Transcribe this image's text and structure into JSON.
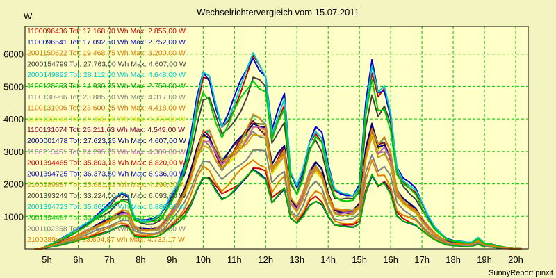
{
  "chart_data": {
    "type": "line",
    "title": "Wechselrichtervergleich vom 15.07.2011",
    "ylabel": "W",
    "footer": "SunnyReport pinxit",
    "x_ticks": [
      "5h",
      "6h",
      "7h",
      "8h",
      "9h",
      "10h",
      "11h",
      "12h",
      "13h",
      "14h",
      "15h",
      "16h",
      "17h",
      "18h",
      "19h",
      "20h"
    ],
    "x_tick_values": [
      5,
      6,
      7,
      8,
      9,
      10,
      11,
      12,
      13,
      14,
      15,
      16,
      17,
      18,
      19,
      20
    ],
    "y_ticks": [
      1000,
      2000,
      3000,
      4000,
      5000,
      6000
    ],
    "xlim": [
      4.3,
      20.4
    ],
    "ylim": [
      0,
      6850
    ],
    "grid": true,
    "legend_position": "top-left",
    "x": [
      4.6,
      4.8,
      5.0,
      5.2,
      5.4,
      5.6,
      5.8,
      6.0,
      6.2,
      6.4,
      6.6,
      6.8,
      7.0,
      7.2,
      7.4,
      7.6,
      7.8,
      8.0,
      8.2,
      8.4,
      8.6,
      8.8,
      9.0,
      9.2,
      9.4,
      9.6,
      9.8,
      10.0,
      10.2,
      10.4,
      10.6,
      10.8,
      11.0,
      11.2,
      11.4,
      11.6,
      11.8,
      12.0,
      12.2,
      12.4,
      12.6,
      12.8,
      13.0,
      13.2,
      13.4,
      13.6,
      13.8,
      14.0,
      14.2,
      14.4,
      14.6,
      14.8,
      15.0,
      15.2,
      15.4,
      15.6,
      15.8,
      16.0,
      16.2,
      16.4,
      16.6,
      16.8,
      17.0,
      17.2,
      17.4,
      17.6,
      17.8,
      18.0,
      18.2,
      18.4,
      18.6,
      18.8,
      19.0,
      19.2,
      19.4,
      19.6,
      19.8,
      20.0,
      20.2
    ],
    "series": [
      {
        "name": "1100096436 Tot: 17.168,00 Wh Max: 2.855,00 W",
        "color": "#cc0000",
        "scale": 0.42,
        "unscaled": true
      },
      {
        "name": "1100096541 Tot: 17.092,50 Wh Max: 2.752,00 W",
        "color": "#0000cc",
        "scale": 0.4,
        "unscaled": true
      },
      {
        "name": "2001150622 Tot: 19.468,75 Wh Max: 3.200,00 W",
        "color": "#e08000",
        "scale": 0.47,
        "unscaled": true
      },
      {
        "name": "2000154799 Tot: 27.763,00 Wh Max: 4.607,00 W",
        "color": "#404040",
        "scale": 0.68
      },
      {
        "name": "2000149892 Tot: 28.112,00 Wh Max: 4.648,00 W",
        "color": "#00cccc",
        "scale": 0.68
      },
      {
        "name": "1100128553 Tot: 14.930,25 Wh Max: 2.759,00 W",
        "color": "#00b000",
        "scale": 0.4,
        "unscaled": true
      },
      {
        "name": "1100130966 Tot: 23.885,50 Wh Max: 4.317,00 W",
        "color": "#808080",
        "scale": 0.63
      },
      {
        "name": "1100131006 Tot: 23.600,25 Wh Max: 4.418,00 W",
        "color": "#d07000",
        "scale": 0.65
      },
      {
        "name": "1100132033 Tot: 24.365,50 Wh Max: 4.379,00 W",
        "color": "#e0e000",
        "scale": 0.64
      },
      {
        "name": "1100131074 Tot: 25.211,63 Wh Max: 4.549,00 W",
        "color": "#800040",
        "scale": 0.66
      },
      {
        "name": "2000001478 Tot: 27.623,25 Wh Max: 4.607,00 W",
        "color": "#000080",
        "scale": 0.68
      },
      {
        "name": "1100213451 Tot: 24.295,25 Wh Max: 4.389,00 W",
        "color": "#c060c0",
        "scale": 0.64
      },
      {
        "name": "2001394485 Tot: 35.803,13 Wh Max: 6.820,00 W",
        "color": "#cc0000",
        "scale": 0.97
      },
      {
        "name": "2001394725 Tot: 36.373,50 Wh Max: 6.936,00 W",
        "color": "#0000cc",
        "scale": 1.0
      },
      {
        "name": "2100289887 Tot: 23.681,92 Wh Max: 4.296,00 W",
        "color": "#d0a000",
        "scale": 0.62
      },
      {
        "name": "2001393249 Tot: 33.224,00 Wh Max: 6.093,00 W",
        "color": "#404040",
        "scale": 0.88
      },
      {
        "name": "2001394723 Tot: 35.865,00 Wh Max: 6.886,00 W",
        "color": "#00cccc",
        "scale": 0.99
      },
      {
        "name": "2001394487 Tot: 33.859,00 Wh Max: 6.200,00 W",
        "color": "#00cc00",
        "scale": 0.9
      },
      {
        "name": "2001102358 Tot: 18.051,25 Wh Max: 3.657,00 W",
        "color": "#808080",
        "scale": 0.53
      },
      {
        "name": "2100289xxx Tot: 23.604,87 Wh Max: 4.732,17 W",
        "color": "#e08000",
        "scale": 0.68
      }
    ],
    "base_profile": [
      0,
      0,
      100,
      180,
      280,
      380,
      500,
      620,
      760,
      900,
      1050,
      1200,
      1350,
      1550,
      1700,
      1650,
      1000,
      900,
      880,
      900,
      1000,
      1300,
      1700,
      2100,
      2600,
      3400,
      4500,
      5300,
      5200,
      4500,
      3900,
      4200,
      4600,
      5000,
      5400,
      5900,
      5700,
      5500,
      3700,
      4200,
      4600,
      2300,
      1900,
      2500,
      3400,
      3800,
      3500,
      2500,
      1800,
      1700,
      1700,
      1700,
      2000,
      4400,
      5600,
      4700,
      4900,
      4200,
      2600,
      2200,
      2000,
      1800,
      1400,
      1000,
      700,
      500,
      320,
      250,
      230,
      200,
      200,
      350,
      180,
      150,
      100,
      60,
      20,
      5,
      0
    ]
  }
}
